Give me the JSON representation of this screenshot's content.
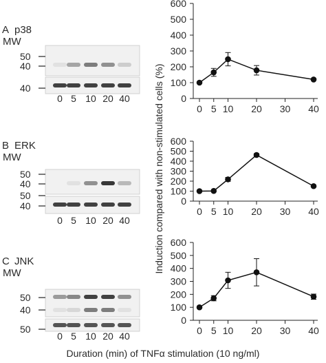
{
  "footer_label": "Duration (min) of TNFα stimulation (10 ng/ml)",
  "shared_ylabel": "Induction compared with non-stimulated cells (%)",
  "chart_data": [
    {
      "panel": "A",
      "protein": "p38",
      "mw_title": "MW",
      "blot_mw_markers": [
        "50",
        "40",
        "40"
      ],
      "blot_lanes": [
        "0",
        "5",
        "10",
        "20",
        "40"
      ],
      "type": "line",
      "x": [
        0,
        5,
        10,
        20,
        40
      ],
      "x_ticks": [
        "0",
        "5",
        "10",
        "20",
        "30",
        "40"
      ],
      "values": [
        100,
        165,
        248,
        178,
        120
      ],
      "errors": [
        0,
        25,
        42,
        30,
        0
      ],
      "ylim": [
        0,
        600
      ],
      "y_ticks": [
        "0",
        "100",
        "200",
        "300",
        "400",
        "500",
        "600"
      ],
      "grid": false,
      "marker_color": "#111111"
    },
    {
      "panel": "B",
      "protein": "ERK",
      "mw_title": "MW",
      "blot_mw_markers": [
        "50",
        "40",
        "50",
        "40"
      ],
      "blot_lanes": [
        "0",
        "5",
        "10",
        "20",
        "40"
      ],
      "type": "line",
      "x": [
        0,
        5,
        10,
        20,
        40
      ],
      "x_ticks": [
        "0",
        "5",
        "10",
        "20",
        "30",
        "40"
      ],
      "values": [
        100,
        102,
        218,
        462,
        150
      ],
      "errors": [
        0,
        0,
        20,
        14,
        0
      ],
      "ylim": [
        0,
        600
      ],
      "y_ticks": [
        "0",
        "100",
        "200",
        "300",
        "400",
        "500",
        "600"
      ],
      "grid": false,
      "marker_color": "#111111"
    },
    {
      "panel": "C",
      "protein": "JNK",
      "mw_title": "MW",
      "blot_mw_markers": [
        "50",
        "40",
        "50"
      ],
      "blot_lanes": [
        "0",
        "5",
        "10",
        "20",
        "40"
      ],
      "type": "line",
      "x": [
        0,
        5,
        10,
        20,
        40
      ],
      "x_ticks": [
        "0",
        "5",
        "10",
        "20",
        "30",
        "40"
      ],
      "values": [
        100,
        170,
        308,
        370,
        182
      ],
      "errors": [
        0,
        20,
        62,
        105,
        20
      ],
      "ylim": [
        0,
        600
      ],
      "y_ticks": [
        "0",
        "100",
        "200",
        "300",
        "400",
        "500",
        "600"
      ],
      "grid": false,
      "marker_color": "#111111"
    }
  ]
}
